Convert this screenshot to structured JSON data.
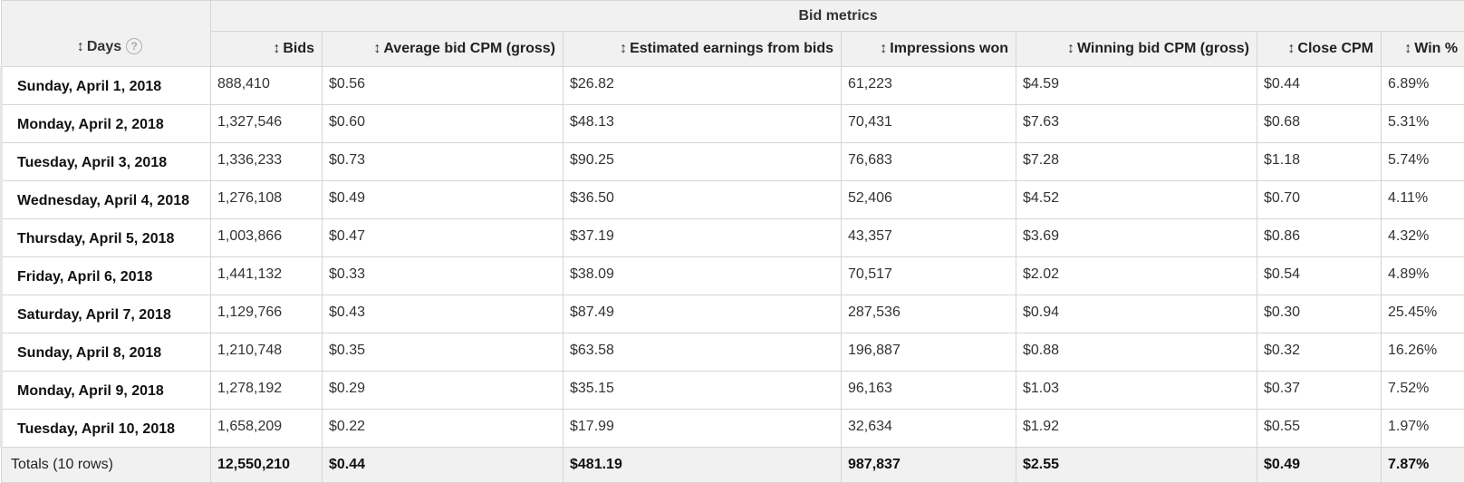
{
  "header": {
    "group_label": "Bid metrics",
    "days_label": "Days",
    "help_icon": "question-circle-icon",
    "sort_icon": "sort-arrows-icon",
    "columns": [
      "Bids",
      "Average bid CPM (gross)",
      "Estimated earnings from bids",
      "Impressions won",
      "Winning bid CPM (gross)",
      "Close CPM",
      "Win %"
    ]
  },
  "rows": [
    {
      "day": "Sunday, April 1, 2018",
      "values": [
        "888,410",
        "$0.56",
        "$26.82",
        "61,223",
        "$4.59",
        "$0.44",
        "6.89%"
      ]
    },
    {
      "day": "Monday, April 2, 2018",
      "values": [
        "1,327,546",
        "$0.60",
        "$48.13",
        "70,431",
        "$7.63",
        "$0.68",
        "5.31%"
      ]
    },
    {
      "day": "Tuesday, April 3, 2018",
      "values": [
        "1,336,233",
        "$0.73",
        "$90.25",
        "76,683",
        "$7.28",
        "$1.18",
        "5.74%"
      ]
    },
    {
      "day": "Wednesday, April 4, 2018",
      "values": [
        "1,276,108",
        "$0.49",
        "$36.50",
        "52,406",
        "$4.52",
        "$0.70",
        "4.11%"
      ]
    },
    {
      "day": "Thursday, April 5, 2018",
      "values": [
        "1,003,866",
        "$0.47",
        "$37.19",
        "43,357",
        "$3.69",
        "$0.86",
        "4.32%"
      ]
    },
    {
      "day": "Friday, April 6, 2018",
      "values": [
        "1,441,132",
        "$0.33",
        "$38.09",
        "70,517",
        "$2.02",
        "$0.54",
        "4.89%"
      ]
    },
    {
      "day": "Saturday, April 7, 2018",
      "values": [
        "1,129,766",
        "$0.43",
        "$87.49",
        "287,536",
        "$0.94",
        "$0.30",
        "25.45%"
      ]
    },
    {
      "day": "Sunday, April 8, 2018",
      "values": [
        "1,210,748",
        "$0.35",
        "$63.58",
        "196,887",
        "$0.88",
        "$0.32",
        "16.26%"
      ]
    },
    {
      "day": "Monday, April 9, 2018",
      "values": [
        "1,278,192",
        "$0.29",
        "$35.15",
        "96,163",
        "$1.03",
        "$0.37",
        "7.52%"
      ]
    },
    {
      "day": "Tuesday, April 10, 2018",
      "values": [
        "1,658,209",
        "$0.22",
        "$17.99",
        "32,634",
        "$1.92",
        "$0.55",
        "1.97%"
      ]
    }
  ],
  "totals": {
    "label": "Totals (10 rows)",
    "values": [
      "12,550,210",
      "$0.44",
      "$481.19",
      "987,837",
      "$2.55",
      "$0.49",
      "7.87%"
    ]
  }
}
